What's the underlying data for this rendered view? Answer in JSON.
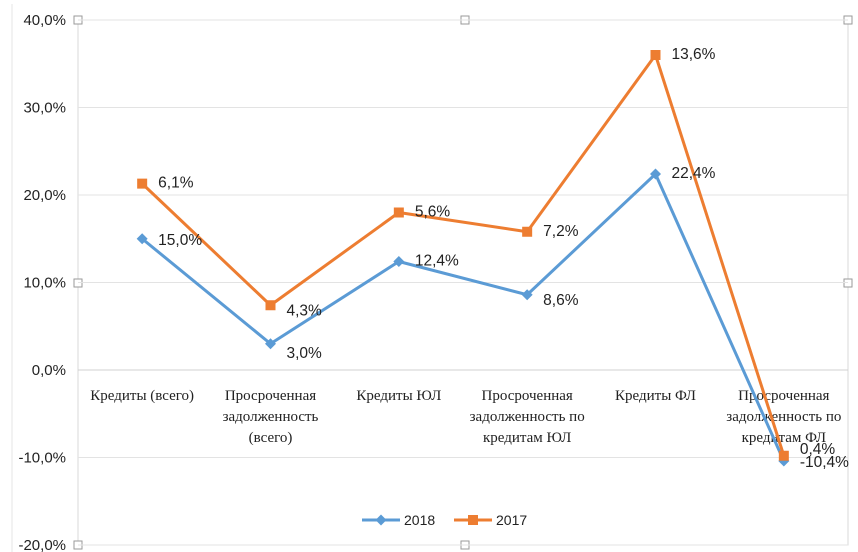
{
  "chart_data": {
    "type": "line",
    "categories": [
      [
        "Кредиты (всего)"
      ],
      [
        "Просроченная",
        "задолженность",
        "(всего)"
      ],
      [
        "Кредиты ЮЛ"
      ],
      [
        "Просроченная",
        "задолженность по",
        "кредитам ЮЛ"
      ],
      [
        "Кредиты ФЛ"
      ],
      [
        "Просроченная",
        "задолженность по",
        "кредитам ФЛ"
      ]
    ],
    "series": [
      {
        "name": "2018",
        "color": "#5b9bd5",
        "marker": "diamond",
        "values": [
          15.0,
          3.0,
          12.4,
          8.6,
          22.4,
          -10.4
        ],
        "labels": [
          "15,0%",
          "3,0%",
          "12,4%",
          "8,6%",
          "22,4%",
          "-10,4%"
        ]
      },
      {
        "name": "2017",
        "color": "#ed7d31",
        "marker": "square",
        "values": [
          21.3,
          7.4,
          18.0,
          15.8,
          36.0,
          -9.8
        ],
        "labels": [
          "6,1%",
          "4,3%",
          "5,6%",
          "7,2%",
          "13,6%",
          "0,4%"
        ]
      }
    ],
    "yticks": [
      "40,0%",
      "30,0%",
      "20,0%",
      "10,0%",
      "0,0%",
      "-10,0%",
      "-20,0%"
    ],
    "ylim": [
      -20,
      40
    ],
    "legend_position": "bottom",
    "grid": true
  }
}
